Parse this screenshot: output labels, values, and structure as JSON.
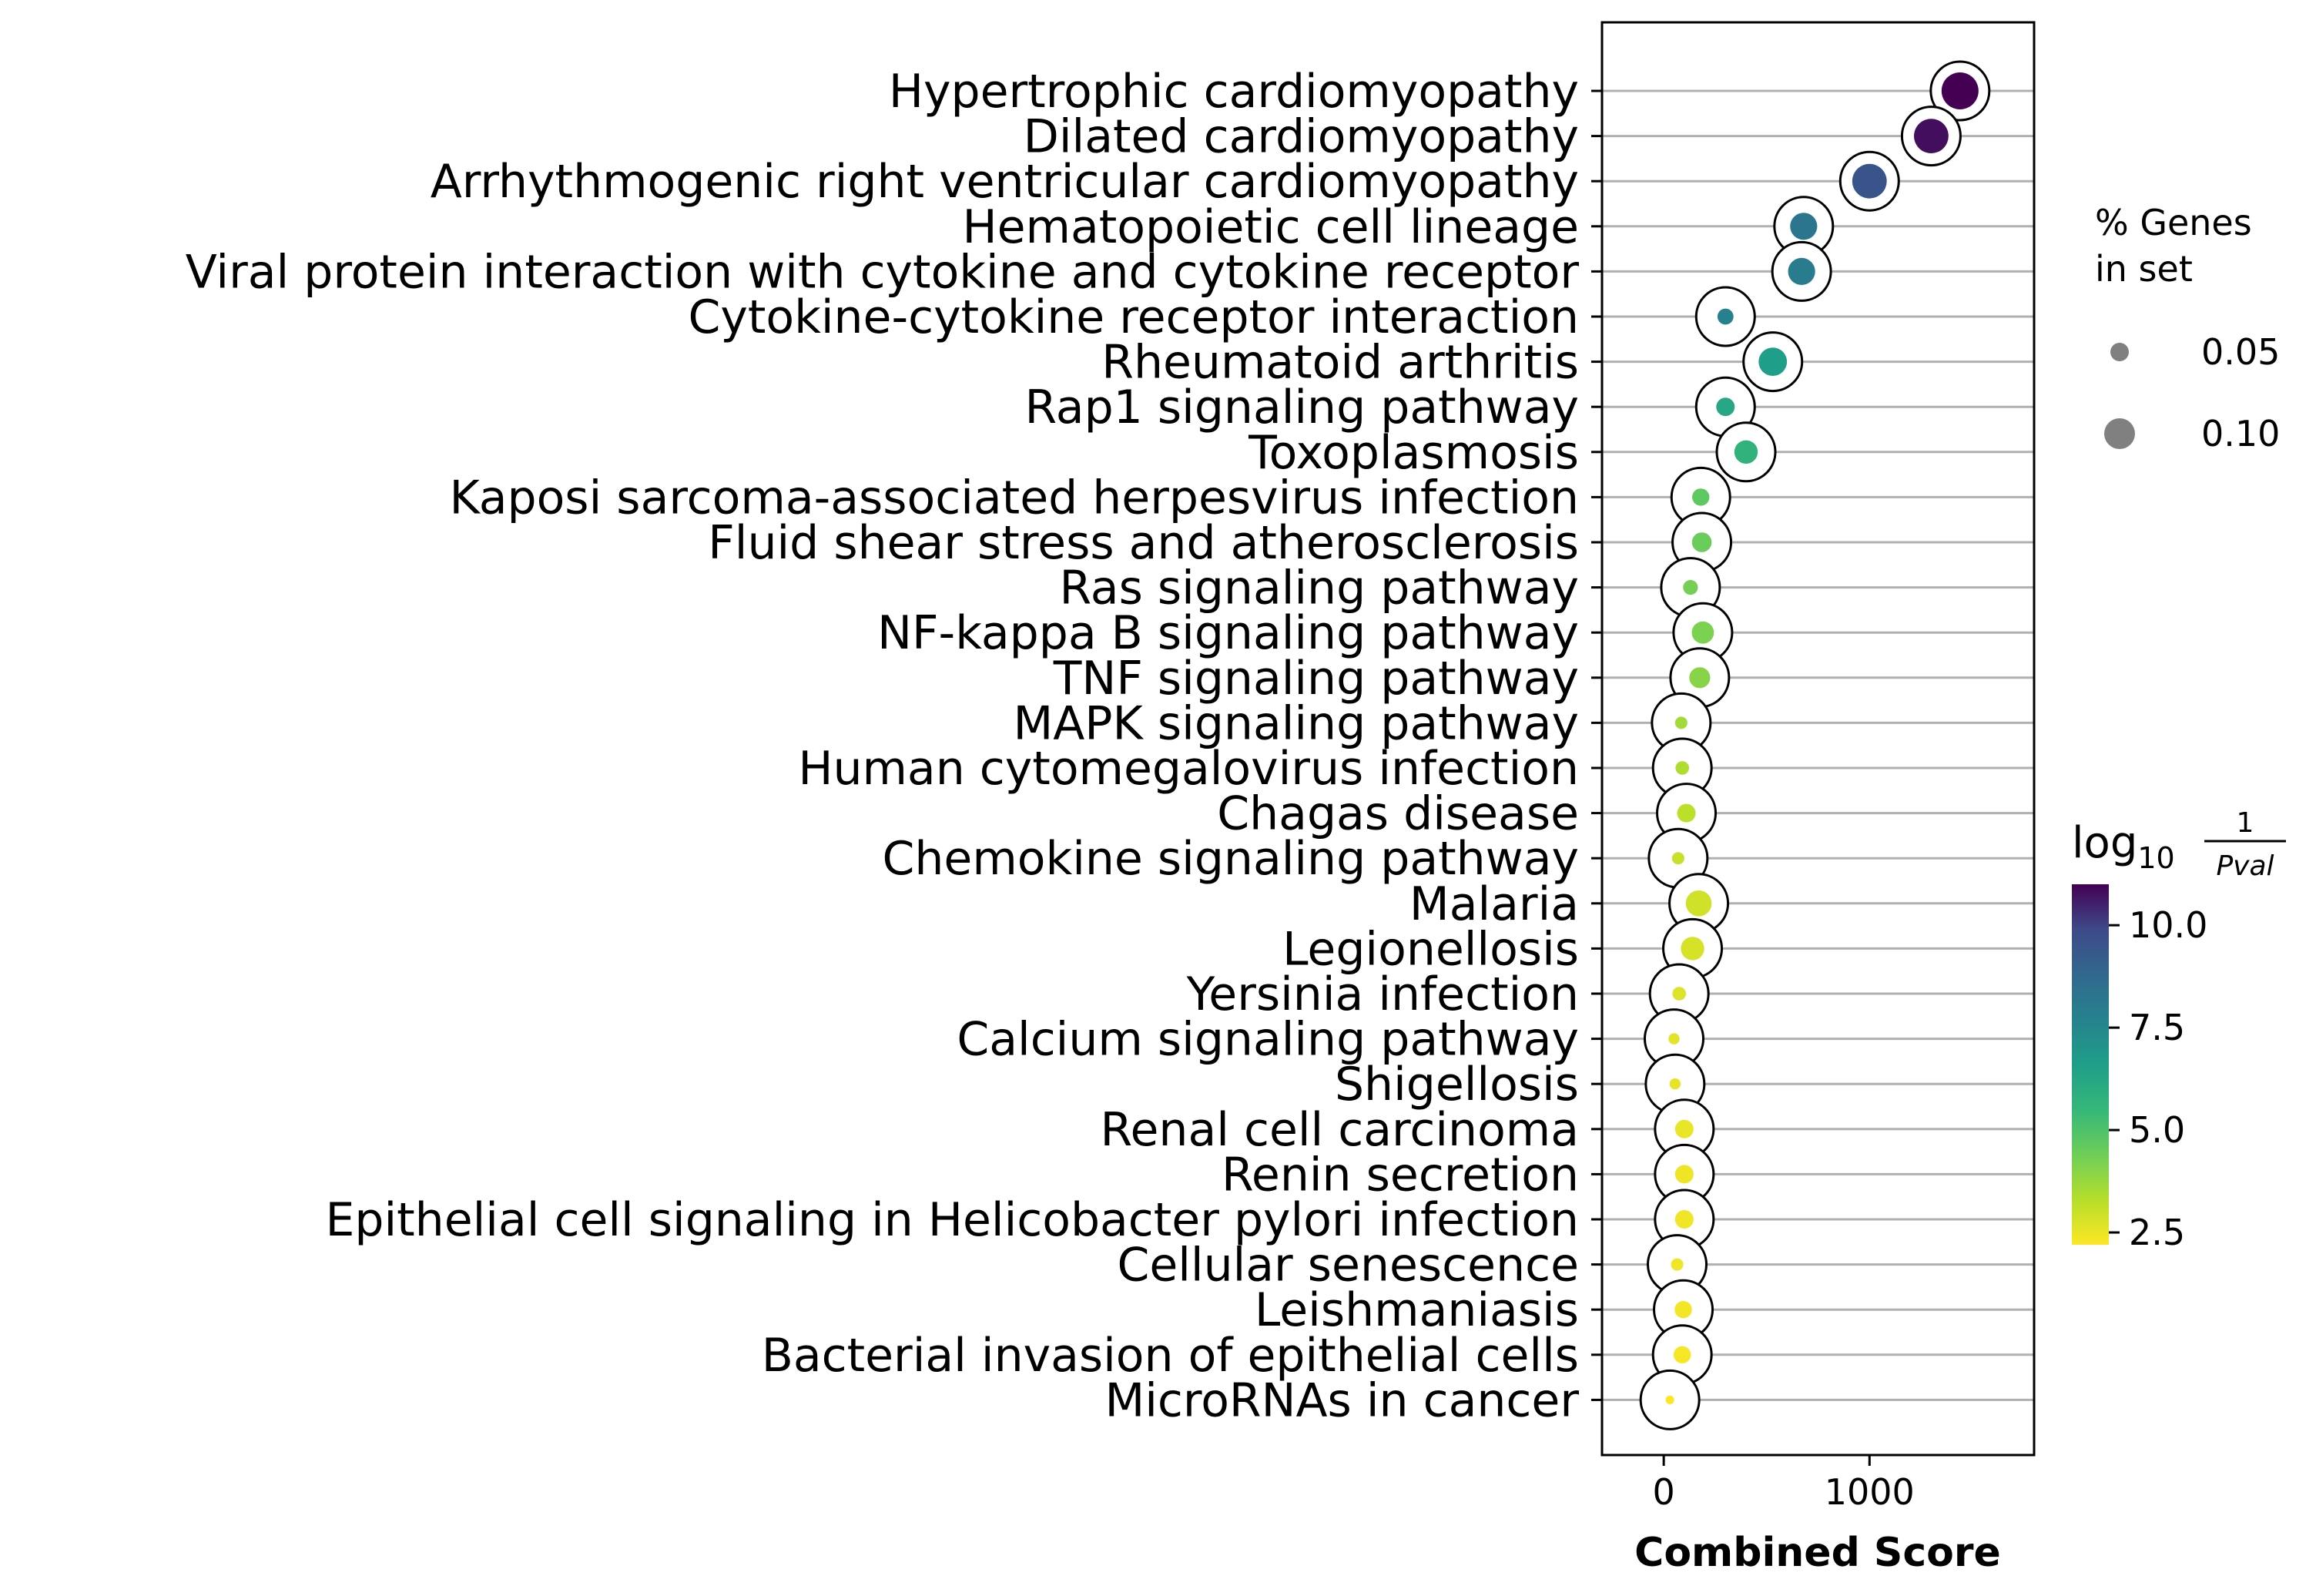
{
  "chart_data": {
    "type": "scatter",
    "xlabel": "Combined Score",
    "xlim": [
      -300,
      1800
    ],
    "x_ticks": [
      {
        "value": 0,
        "label": "0"
      },
      {
        "value": 1000,
        "label": "1000"
      }
    ],
    "grid": "horizontal",
    "categories": [
      "Hypertrophic cardiomyopathy",
      "Dilated cardiomyopathy",
      "Arrhythmogenic right ventricular cardiomyopathy",
      "Hematopoietic cell lineage",
      "Viral protein interaction with cytokine and cytokine receptor",
      "Cytokine-cytokine receptor interaction",
      "Rheumatoid arthritis",
      "Rap1 signaling pathway",
      "Toxoplasmosis",
      "Kaposi sarcoma-associated herpesvirus infection",
      "Fluid shear stress and atherosclerosis",
      "Ras signaling pathway",
      "NF-kappa B signaling pathway",
      "TNF signaling pathway",
      "MAPK signaling pathway",
      "Human cytomegalovirus infection",
      "Chagas disease",
      "Chemokine signaling pathway",
      "Malaria",
      "Legionellosis",
      "Yersinia infection",
      "Calcium signaling pathway",
      "Shigellosis",
      "Renal cell carcinoma",
      "Renin secretion",
      "Epithelial cell signaling in Helicobacter pylori infection",
      "Cellular senescence",
      "Leishmaniasis",
      "Bacterial invasion of epithelial cells",
      "MicroRNAs in cancer"
    ],
    "points": [
      {
        "term": "Hypertrophic cardiomyopathy",
        "combined_score": 1440,
        "log10_inv_pval": 11.0,
        "pct_genes": 0.125
      },
      {
        "term": "Dilated cardiomyopathy",
        "combined_score": 1300,
        "log10_inv_pval": 10.8,
        "pct_genes": 0.115
      },
      {
        "term": "Arrhythmogenic right ventricular cardiomyopathy",
        "combined_score": 1000,
        "log10_inv_pval": 9.5,
        "pct_genes": 0.115
      },
      {
        "term": "Hematopoietic cell lineage",
        "combined_score": 680,
        "log10_inv_pval": 8.2,
        "pct_genes": 0.085
      },
      {
        "term": "Viral protein interaction with cytokine and cytokine receptor",
        "combined_score": 670,
        "log10_inv_pval": 8.0,
        "pct_genes": 0.085
      },
      {
        "term": "Cytokine-cytokine receptor interaction",
        "combined_score": 300,
        "log10_inv_pval": 7.8,
        "pct_genes": 0.04
      },
      {
        "term": "Rheumatoid arthritis",
        "combined_score": 530,
        "log10_inv_pval": 6.6,
        "pct_genes": 0.09
      },
      {
        "term": "Rap1 signaling pathway",
        "combined_score": 300,
        "log10_inv_pval": 6.2,
        "pct_genes": 0.05
      },
      {
        "term": "Toxoplasmosis",
        "combined_score": 400,
        "log10_inv_pval": 5.7,
        "pct_genes": 0.07
      },
      {
        "term": "Kaposi sarcoma-associated herpesvirus infection",
        "combined_score": 180,
        "log10_inv_pval": 4.7,
        "pct_genes": 0.045
      },
      {
        "term": "Fluid shear stress and atherosclerosis",
        "combined_score": 185,
        "log10_inv_pval": 4.5,
        "pct_genes": 0.055
      },
      {
        "term": "Ras signaling pathway",
        "combined_score": 130,
        "log10_inv_pval": 4.3,
        "pct_genes": 0.035
      },
      {
        "term": "NF-kappa B signaling pathway",
        "combined_score": 190,
        "log10_inv_pval": 4.2,
        "pct_genes": 0.065
      },
      {
        "term": "TNF signaling pathway",
        "combined_score": 175,
        "log10_inv_pval": 4.0,
        "pct_genes": 0.06
      },
      {
        "term": "MAPK signaling pathway",
        "combined_score": 85,
        "log10_inv_pval": 3.6,
        "pct_genes": 0.025
      },
      {
        "term": "Human cytomegalovirus infection",
        "combined_score": 90,
        "log10_inv_pval": 3.4,
        "pct_genes": 0.03
      },
      {
        "term": "Chagas disease",
        "combined_score": 110,
        "log10_inv_pval": 3.2,
        "pct_genes": 0.05
      },
      {
        "term": "Chemokine signaling pathway",
        "combined_score": 70,
        "log10_inv_pval": 3.0,
        "pct_genes": 0.025
      },
      {
        "term": "Malaria",
        "combined_score": 170,
        "log10_inv_pval": 2.9,
        "pct_genes": 0.08
      },
      {
        "term": "Legionellosis",
        "combined_score": 140,
        "log10_inv_pval": 2.8,
        "pct_genes": 0.07
      },
      {
        "term": "Yersinia infection",
        "combined_score": 75,
        "log10_inv_pval": 2.7,
        "pct_genes": 0.03
      },
      {
        "term": "Calcium signaling pathway",
        "combined_score": 50,
        "log10_inv_pval": 2.6,
        "pct_genes": 0.02
      },
      {
        "term": "Shigellosis",
        "combined_score": 55,
        "log10_inv_pval": 2.55,
        "pct_genes": 0.02
      },
      {
        "term": "Renal cell carcinoma",
        "combined_score": 100,
        "log10_inv_pval": 2.5,
        "pct_genes": 0.05
      },
      {
        "term": "Renin secretion",
        "combined_score": 100,
        "log10_inv_pval": 2.45,
        "pct_genes": 0.05
      },
      {
        "term": "Epithelial cell signaling in Helicobacter pylori infection",
        "combined_score": 100,
        "log10_inv_pval": 2.4,
        "pct_genes": 0.05
      },
      {
        "term": "Cellular senescence",
        "combined_score": 65,
        "log10_inv_pval": 2.4,
        "pct_genes": 0.025
      },
      {
        "term": "Leishmaniasis",
        "combined_score": 95,
        "log10_inv_pval": 2.35,
        "pct_genes": 0.045
      },
      {
        "term": "Bacterial invasion of epithelial cells",
        "combined_score": 90,
        "log10_inv_pval": 2.3,
        "pct_genes": 0.045
      },
      {
        "term": "MicroRNAs in cancer",
        "combined_score": 30,
        "log10_inv_pval": 2.2,
        "pct_genes": 0.01
      }
    ],
    "size_legend": {
      "title_lines": [
        "% Genes",
        "in set"
      ],
      "entries": [
        {
          "label": "0.05",
          "value": 0.05
        },
        {
          "label": "0.10",
          "value": 0.1
        }
      ],
      "placement": "right"
    },
    "colorbar": {
      "title_base": "log",
      "title_sub": "10",
      "title_num": "1",
      "title_den": "Pval",
      "range": [
        2.2,
        11.0
      ],
      "ticks": [
        {
          "value": 2.5,
          "label": "2.5"
        },
        {
          "value": 5.0,
          "label": "5.0"
        },
        {
          "value": 7.5,
          "label": "7.5"
        },
        {
          "value": 10.0,
          "label": "10.0"
        }
      ],
      "colormap": "viridis_r",
      "placement": "right"
    }
  }
}
